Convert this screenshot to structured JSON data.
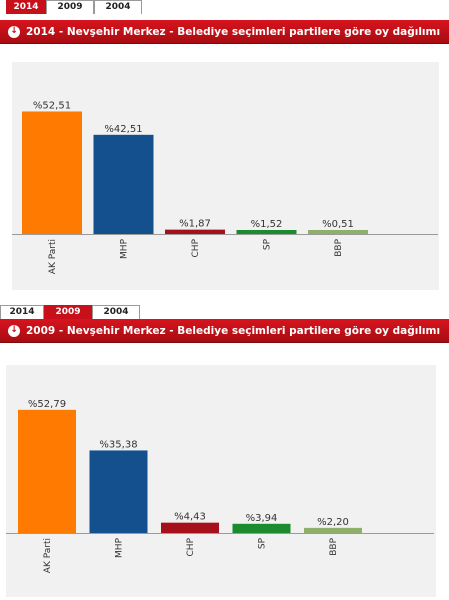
{
  "charts": [
    {
      "tabs": [
        "2014",
        "2009",
        "2004"
      ],
      "active_tab": 0,
      "title": "2014 - Nevşehir Merkez - Belediye seçimleri partilere göre oy dağılımı"
    },
    {
      "tabs": [
        "2014",
        "2009",
        "2004"
      ],
      "active_tab": 1,
      "title": "2009 - Nevşehir Merkez - Belediye seçimleri partilere göre oy dağılımı"
    }
  ],
  "chart_data": [
    {
      "type": "bar",
      "title": "2014 - Nevşehir Merkez - Belediye seçimleri partilere göre oy dağılımı",
      "categories": [
        "AK Parti",
        "MHP",
        "CHP",
        "SP",
        "BBP"
      ],
      "values": [
        52.51,
        42.51,
        1.87,
        1.52,
        0.51
      ],
      "data_labels": [
        "%52,51",
        "%42,51",
        "%1,87",
        "%1,52",
        "%0,51"
      ],
      "colors": [
        "#ff7a00",
        "#13508d",
        "#a6101a",
        "#1a8c2e",
        "#8fb06a"
      ],
      "xlabel": "",
      "ylabel": "",
      "ylim": [
        0,
        60
      ],
      "grid": false,
      "legend": "none"
    },
    {
      "type": "bar",
      "title": "2009 - Nevşehir Merkez - Belediye seçimleri partilere göre oy dağılımı",
      "categories": [
        "AK Parti",
        "MHP",
        "CHP",
        "SP",
        "BBP"
      ],
      "values": [
        52.79,
        35.38,
        4.43,
        3.94,
        2.2
      ],
      "data_labels": [
        "%52,79",
        "%35,38",
        "%4,43",
        "%3,94",
        "%2,20"
      ],
      "colors": [
        "#ff7a00",
        "#13508d",
        "#a6101a",
        "#1a8c2e",
        "#8fb06a"
      ],
      "xlabel": "",
      "ylabel": "",
      "ylim": [
        0,
        60
      ],
      "grid": false,
      "legend": "none"
    }
  ]
}
